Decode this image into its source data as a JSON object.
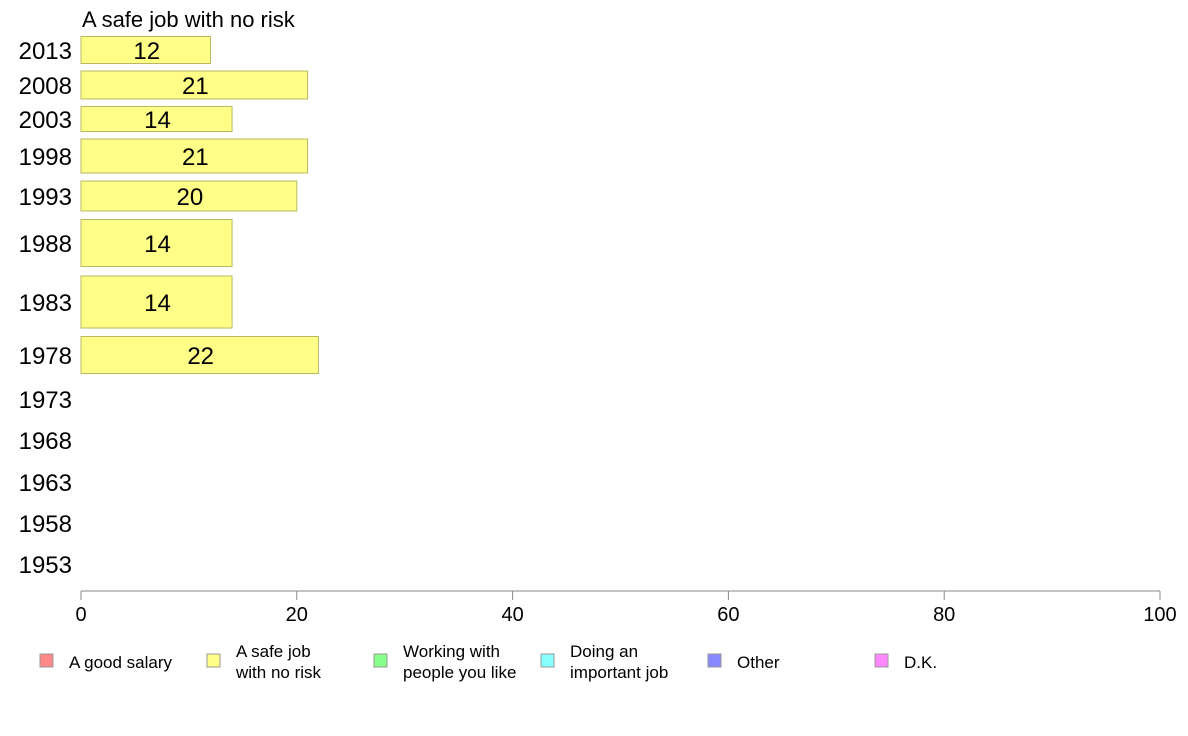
{
  "chart_data": {
    "type": "bar",
    "orientation": "horizontal",
    "title": "A safe job with no risk",
    "xlabel": "",
    "ylabel": "",
    "xlim": [
      0,
      100
    ],
    "xticks": [
      0,
      20,
      40,
      60,
      80,
      100
    ],
    "categories": [
      "2013",
      "2008",
      "2003",
      "1998",
      "1993",
      "1988",
      "1983",
      "1978",
      "1973",
      "1968",
      "1963",
      "1958",
      "1953"
    ],
    "series": [
      {
        "name": "A safe job with no risk",
        "color": "#ffff88",
        "values": [
          12,
          21,
          14,
          21,
          20,
          14,
          14,
          22,
          null,
          null,
          null,
          null,
          null
        ]
      }
    ],
    "grid": false,
    "legend_position": "bottom",
    "legend": [
      {
        "lines": [
          "A good salary"
        ],
        "color": "#ff8888"
      },
      {
        "lines": [
          "A safe job",
          "with no risk"
        ],
        "color": "#ffff88"
      },
      {
        "lines": [
          "Working with",
          "people you like"
        ],
        "color": "#88ff88"
      },
      {
        "lines": [
          "Doing an",
          "important job"
        ],
        "color": "#88ffff"
      },
      {
        "lines": [
          "Other"
        ],
        "color": "#8888ff"
      },
      {
        "lines": [
          "D.K."
        ],
        "color": "#ff88ff"
      }
    ]
  }
}
